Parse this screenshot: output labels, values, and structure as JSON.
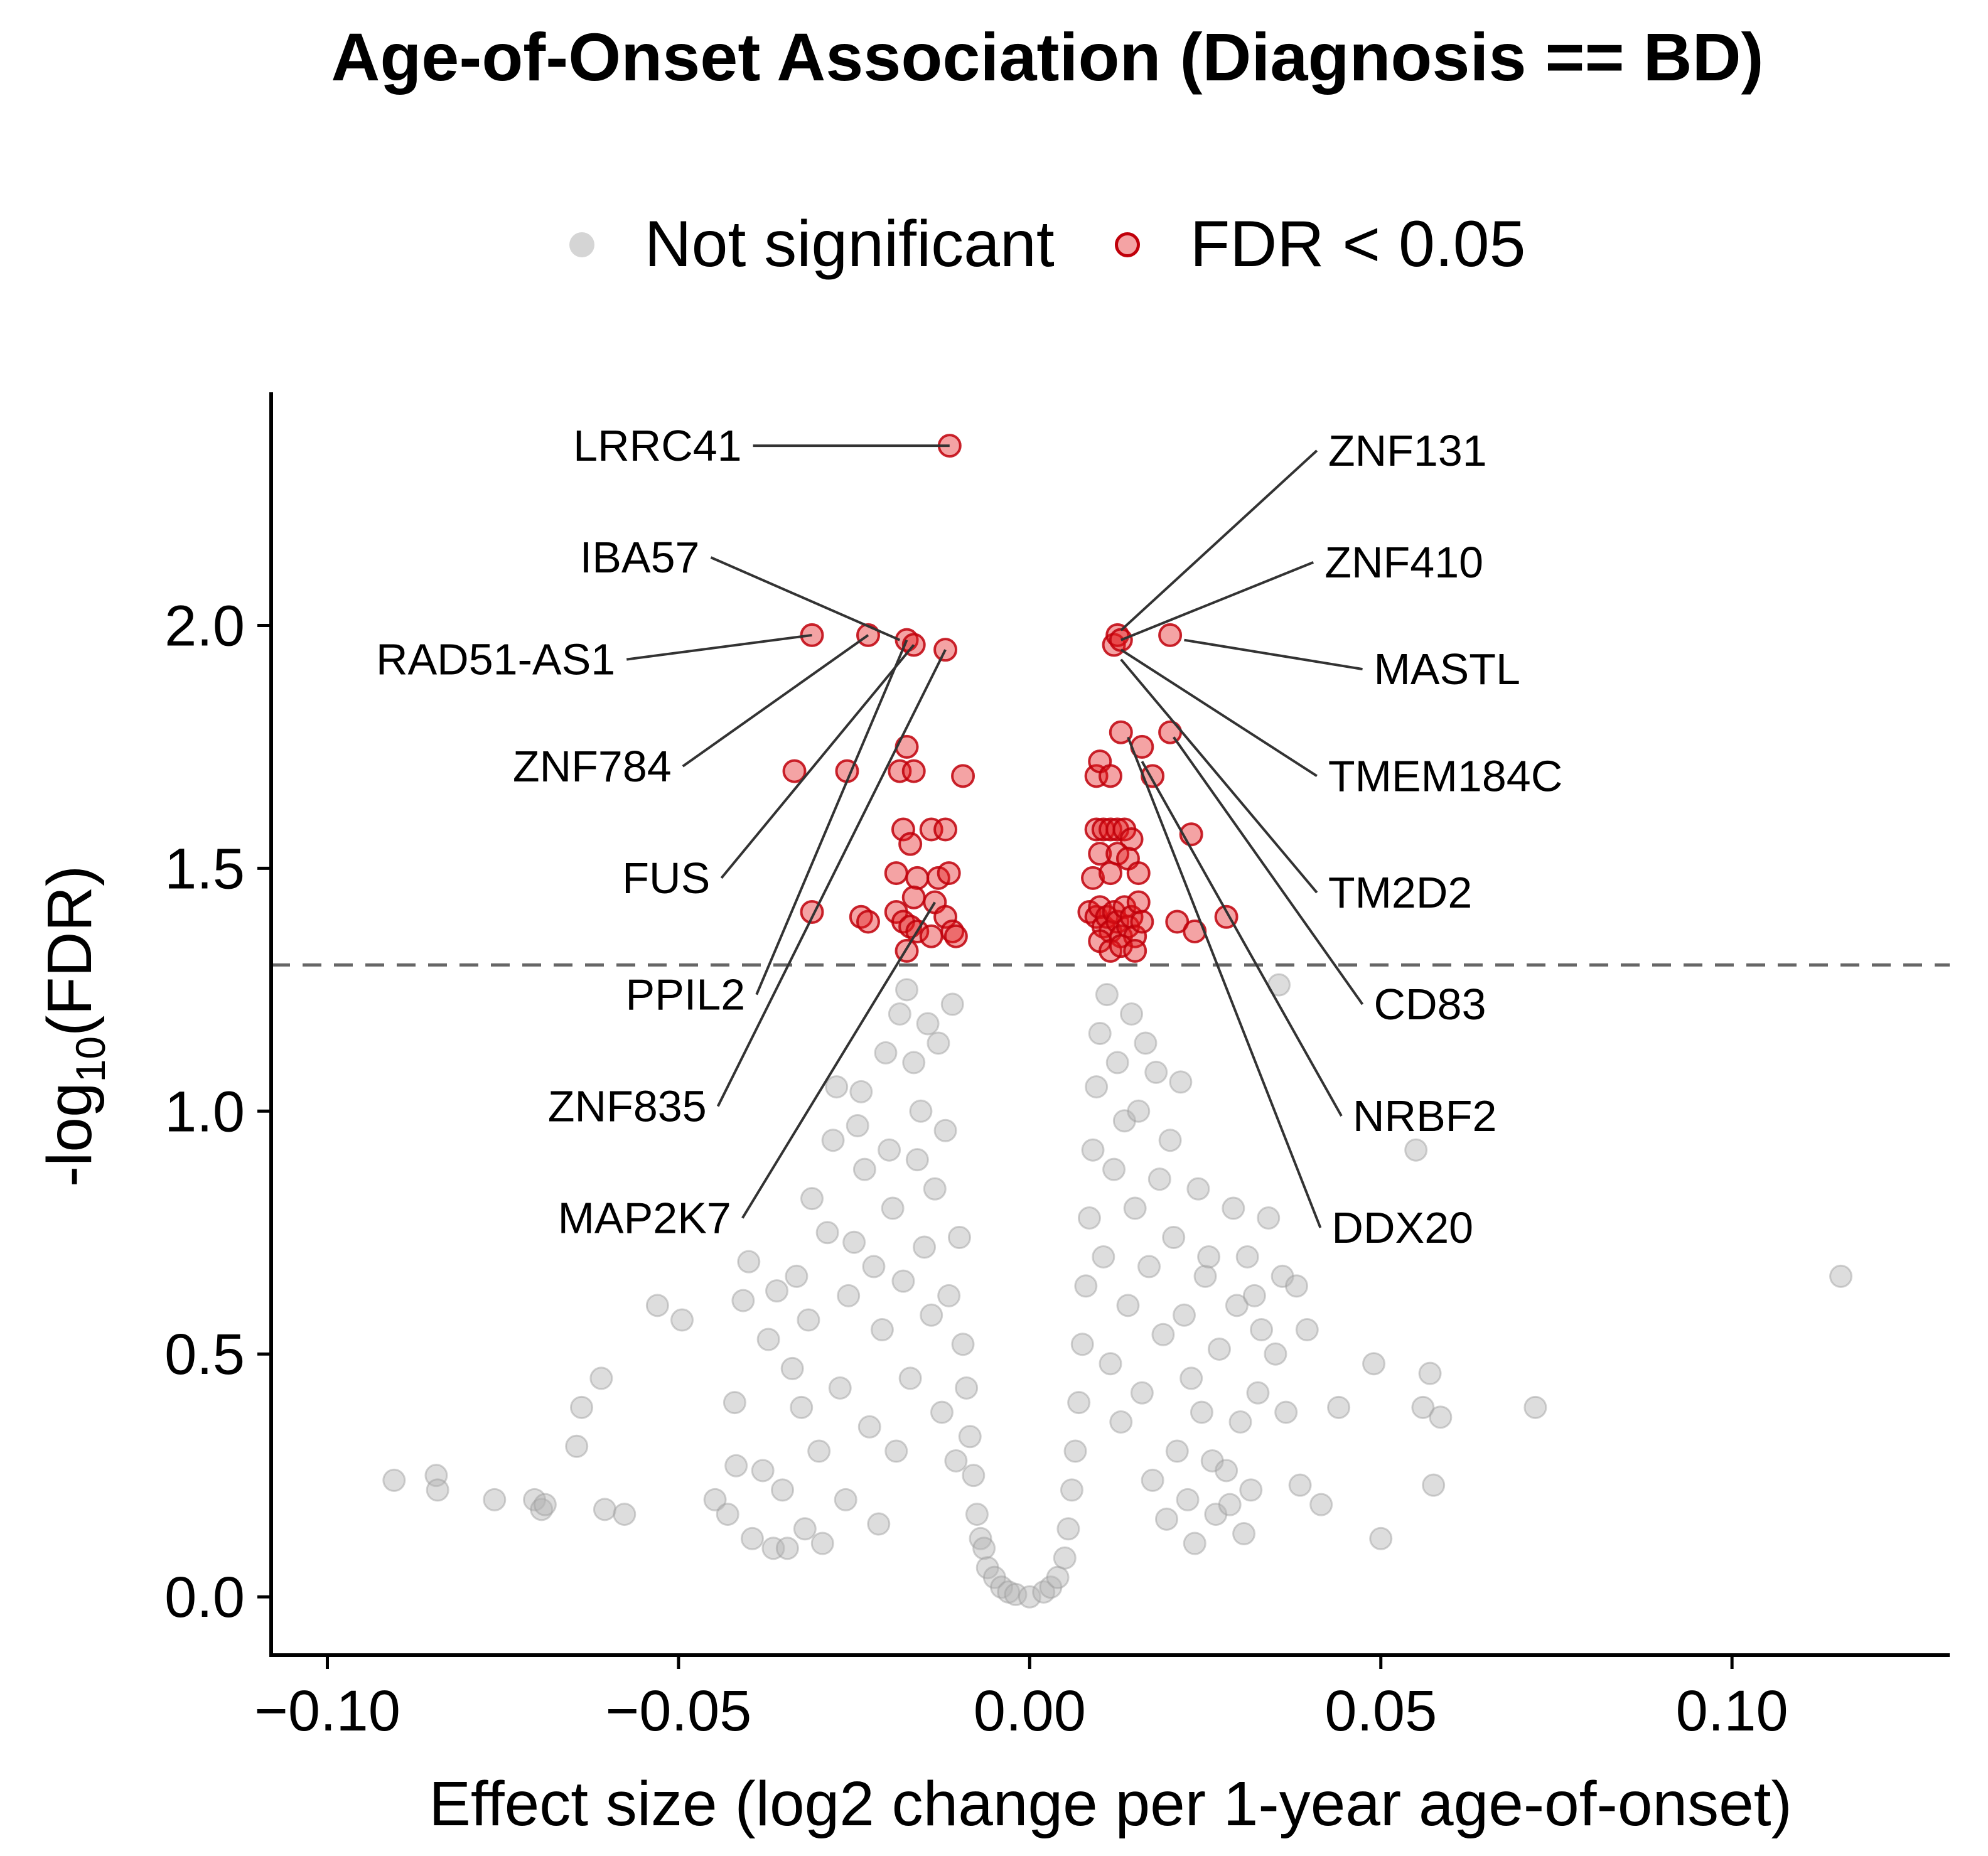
{
  "chart_data": {
    "type": "scatter",
    "title": "Age-of-Onset Association (Diagnosis == BD)",
    "xlabel": "Effect size (log2 change per 1-year age-of-onset)",
    "ylabel_main": "-log",
    "ylabel_sub": "10",
    "ylabel_tail": "(FDR)",
    "xlim": [
      -0.108,
      0.131
    ],
    "ylim": [
      -0.12,
      2.48
    ],
    "xticks": [
      -0.1,
      -0.05,
      0.0,
      0.05,
      0.1
    ],
    "xtick_labels": [
      "−0.10",
      "−0.05",
      "0.00",
      "0.05",
      "0.10"
    ],
    "yticks": [
      0.0,
      0.5,
      1.0,
      1.5,
      2.0
    ],
    "ytick_labels": [
      "0.0",
      "0.5",
      "1.0",
      "1.5",
      "2.0"
    ],
    "threshold_y": 1.30103,
    "legend_position": "top",
    "colors": {
      "not_significant": "#b3b3b3",
      "significant": "#e31a1c",
      "significant_edge": "#c0000a",
      "threshold": "#666666"
    },
    "series": [
      {
        "name": "Not significant",
        "points": [
          [
            -0.0905,
            0.24
          ],
          [
            -0.0845,
            0.25
          ],
          [
            -0.0843,
            0.22
          ],
          [
            -0.0762,
            0.2
          ],
          [
            -0.0705,
            0.2
          ],
          [
            -0.0695,
            0.18
          ],
          [
            -0.069,
            0.19
          ],
          [
            -0.0645,
            0.31
          ],
          [
            -0.0638,
            0.39
          ],
          [
            -0.061,
            0.45
          ],
          [
            -0.0605,
            0.18
          ],
          [
            -0.0577,
            0.17
          ],
          [
            -0.053,
            0.6
          ],
          [
            -0.0495,
            0.57
          ],
          [
            -0.0448,
            0.2
          ],
          [
            -0.043,
            0.17
          ],
          [
            -0.042,
            0.4
          ],
          [
            -0.0418,
            0.27
          ],
          [
            -0.0408,
            0.61
          ],
          [
            -0.04,
            0.69
          ],
          [
            -0.0395,
            0.12
          ],
          [
            -0.038,
            0.26
          ],
          [
            -0.0372,
            0.53
          ],
          [
            -0.0365,
            0.1
          ],
          [
            -0.036,
            0.63
          ],
          [
            -0.0352,
            0.22
          ],
          [
            -0.0345,
            0.1
          ],
          [
            -0.0338,
            0.47
          ],
          [
            -0.0332,
            0.66
          ],
          [
            -0.0325,
            0.39
          ],
          [
            -0.032,
            0.14
          ],
          [
            -0.0315,
            0.57
          ],
          [
            -0.031,
            0.82
          ],
          [
            -0.03,
            0.3
          ],
          [
            -0.0295,
            0.11
          ],
          [
            -0.0288,
            0.75
          ],
          [
            -0.028,
            0.94
          ],
          [
            -0.0275,
            1.05
          ],
          [
            -0.027,
            0.43
          ],
          [
            -0.0262,
            0.2
          ],
          [
            -0.0258,
            0.62
          ],
          [
            -0.025,
            0.73
          ],
          [
            -0.0245,
            0.97
          ],
          [
            -0.024,
            1.04
          ],
          [
            -0.0235,
            0.88
          ],
          [
            -0.0228,
            0.35
          ],
          [
            -0.0222,
            0.68
          ],
          [
            -0.0215,
            0.15
          ],
          [
            -0.021,
            0.55
          ],
          [
            -0.0205,
            1.12
          ],
          [
            -0.02,
            0.92
          ],
          [
            -0.0195,
            0.8
          ],
          [
            -0.019,
            0.3
          ],
          [
            -0.0185,
            1.2
          ],
          [
            -0.018,
            0.65
          ],
          [
            -0.0175,
            1.25
          ],
          [
            -0.017,
            0.45
          ],
          [
            -0.0165,
            1.1
          ],
          [
            -0.016,
            0.9
          ],
          [
            -0.0155,
            1.0
          ],
          [
            -0.015,
            0.72
          ],
          [
            -0.0145,
            1.18
          ],
          [
            -0.014,
            0.58
          ],
          [
            -0.0135,
            0.84
          ],
          [
            -0.013,
            1.14
          ],
          [
            -0.0125,
            0.38
          ],
          [
            -0.012,
            0.96
          ],
          [
            -0.0115,
            0.62
          ],
          [
            -0.011,
            1.22
          ],
          [
            -0.0105,
            0.28
          ],
          [
            -0.01,
            0.74
          ],
          [
            -0.0095,
            0.52
          ],
          [
            -0.009,
            0.43
          ],
          [
            -0.0085,
            0.33
          ],
          [
            -0.008,
            0.25
          ],
          [
            -0.0075,
            0.17
          ],
          [
            -0.007,
            0.12
          ],
          [
            -0.0065,
            0.1
          ],
          [
            -0.006,
            0.06
          ],
          [
            -0.005,
            0.04
          ],
          [
            -0.004,
            0.02
          ],
          [
            -0.003,
            0.01
          ],
          [
            -0.002,
            0.005
          ],
          [
            0.0,
            0.0
          ],
          [
            0.002,
            0.01
          ],
          [
            0.003,
            0.02
          ],
          [
            0.004,
            0.04
          ],
          [
            0.005,
            0.08
          ],
          [
            0.0055,
            0.14
          ],
          [
            0.006,
            0.22
          ],
          [
            0.0065,
            0.3
          ],
          [
            0.007,
            0.4
          ],
          [
            0.0075,
            0.52
          ],
          [
            0.008,
            0.64
          ],
          [
            0.0085,
            0.78
          ],
          [
            0.009,
            0.92
          ],
          [
            0.0095,
            1.05
          ],
          [
            0.01,
            1.16
          ],
          [
            0.0105,
            0.7
          ],
          [
            0.011,
            1.24
          ],
          [
            0.0115,
            0.48
          ],
          [
            0.012,
            0.88
          ],
          [
            0.0125,
            1.1
          ],
          [
            0.013,
            0.36
          ],
          [
            0.0135,
            0.98
          ],
          [
            0.014,
            0.6
          ],
          [
            0.0145,
            1.2
          ],
          [
            0.015,
            0.8
          ],
          [
            0.0155,
            1.0
          ],
          [
            0.016,
            0.42
          ],
          [
            0.0165,
            1.14
          ],
          [
            0.017,
            0.68
          ],
          [
            0.0175,
            0.24
          ],
          [
            0.018,
            1.08
          ],
          [
            0.0185,
            0.86
          ],
          [
            0.019,
            0.54
          ],
          [
            0.0195,
            0.16
          ],
          [
            0.02,
            0.94
          ],
          [
            0.0205,
            0.74
          ],
          [
            0.021,
            0.3
          ],
          [
            0.0215,
            1.06
          ],
          [
            0.022,
            0.58
          ],
          [
            0.0225,
            0.2
          ],
          [
            0.023,
            0.45
          ],
          [
            0.0235,
            0.11
          ],
          [
            0.024,
            0.84
          ],
          [
            0.0245,
            0.38
          ],
          [
            0.025,
            0.66
          ],
          [
            0.0255,
            0.7
          ],
          [
            0.026,
            0.28
          ],
          [
            0.0265,
            0.17
          ],
          [
            0.027,
            0.51
          ],
          [
            0.028,
            0.26
          ],
          [
            0.0285,
            0.19
          ],
          [
            0.029,
            0.8
          ],
          [
            0.0295,
            0.6
          ],
          [
            0.03,
            0.36
          ],
          [
            0.0305,
            0.13
          ],
          [
            0.031,
            0.7
          ],
          [
            0.0315,
            0.22
          ],
          [
            0.032,
            0.62
          ],
          [
            0.0325,
            0.42
          ],
          [
            0.033,
            0.55
          ],
          [
            0.034,
            0.78
          ],
          [
            0.035,
            0.5
          ],
          [
            0.0355,
            1.26
          ],
          [
            0.036,
            0.66
          ],
          [
            0.0365,
            0.38
          ],
          [
            0.038,
            0.64
          ],
          [
            0.0385,
            0.23
          ],
          [
            0.0395,
            0.55
          ],
          [
            0.0415,
            0.19
          ],
          [
            0.044,
            0.39
          ],
          [
            0.049,
            0.48
          ],
          [
            0.05,
            0.12
          ],
          [
            0.055,
            0.92
          ],
          [
            0.056,
            0.39
          ],
          [
            0.057,
            0.46
          ],
          [
            0.0575,
            0.23
          ],
          [
            0.0585,
            0.37
          ],
          [
            0.072,
            0.39
          ],
          [
            0.1155,
            0.66
          ]
        ]
      },
      {
        "name": "FDR < 0.05",
        "points": [
          [
            -0.0114,
            2.37
          ],
          [
            -0.031,
            1.98
          ],
          [
            -0.023,
            1.98
          ],
          [
            -0.0175,
            1.97
          ],
          [
            -0.0165,
            1.96
          ],
          [
            -0.012,
            1.95
          ],
          [
            0.012,
            1.96
          ],
          [
            0.0125,
            1.98
          ],
          [
            0.013,
            1.97
          ],
          [
            0.02,
            1.98
          ],
          [
            -0.0335,
            1.7
          ],
          [
            -0.026,
            1.7
          ],
          [
            -0.0185,
            1.7
          ],
          [
            -0.0175,
            1.75
          ],
          [
            -0.0165,
            1.7
          ],
          [
            -0.0095,
            1.69
          ],
          [
            -0.018,
            1.58
          ],
          [
            -0.014,
            1.58
          ],
          [
            -0.012,
            1.58
          ],
          [
            -0.017,
            1.55
          ],
          [
            -0.019,
            1.49
          ],
          [
            -0.016,
            1.48
          ],
          [
            -0.013,
            1.48
          ],
          [
            -0.0115,
            1.49
          ],
          [
            -0.0165,
            1.44
          ],
          [
            -0.0135,
            1.43
          ],
          [
            -0.031,
            1.41
          ],
          [
            -0.024,
            1.4
          ],
          [
            -0.023,
            1.39
          ],
          [
            -0.019,
            1.41
          ],
          [
            -0.018,
            1.39
          ],
          [
            -0.017,
            1.38
          ],
          [
            -0.016,
            1.37
          ],
          [
            -0.014,
            1.36
          ],
          [
            -0.012,
            1.4
          ],
          [
            -0.011,
            1.37
          ],
          [
            -0.0105,
            1.36
          ],
          [
            -0.0175,
            1.33
          ],
          [
            0.0095,
            1.69
          ],
          [
            0.01,
            1.72
          ],
          [
            0.0115,
            1.69
          ],
          [
            0.013,
            1.78
          ],
          [
            0.016,
            1.75
          ],
          [
            0.0175,
            1.69
          ],
          [
            0.02,
            1.78
          ],
          [
            0.0095,
            1.58
          ],
          [
            0.0105,
            1.58
          ],
          [
            0.0115,
            1.58
          ],
          [
            0.0125,
            1.58
          ],
          [
            0.0135,
            1.58
          ],
          [
            0.0145,
            1.56
          ],
          [
            0.01,
            1.53
          ],
          [
            0.0125,
            1.53
          ],
          [
            0.014,
            1.52
          ],
          [
            0.009,
            1.48
          ],
          [
            0.0115,
            1.49
          ],
          [
            0.0155,
            1.49
          ],
          [
            0.023,
            1.57
          ],
          [
            0.0085,
            1.41
          ],
          [
            0.0095,
            1.4
          ],
          [
            0.01,
            1.42
          ],
          [
            0.0105,
            1.38
          ],
          [
            0.011,
            1.4
          ],
          [
            0.0115,
            1.37
          ],
          [
            0.012,
            1.41
          ],
          [
            0.0125,
            1.39
          ],
          [
            0.013,
            1.36
          ],
          [
            0.0135,
            1.42
          ],
          [
            0.014,
            1.38
          ],
          [
            0.0145,
            1.4
          ],
          [
            0.015,
            1.36
          ],
          [
            0.0155,
            1.43
          ],
          [
            0.016,
            1.39
          ],
          [
            0.01,
            1.35
          ],
          [
            0.0115,
            1.33
          ],
          [
            0.013,
            1.34
          ],
          [
            0.015,
            1.33
          ],
          [
            0.021,
            1.39
          ],
          [
            0.0235,
            1.37
          ],
          [
            0.028,
            1.4
          ]
        ]
      }
    ],
    "annotations": [
      {
        "label": "LRRC41",
        "px": -0.0114,
        "py": 2.37,
        "tx": -0.041,
        "ty": 2.37,
        "anchor": "end"
      },
      {
        "label": "IBA57",
        "px": -0.0185,
        "py": 1.97,
        "tx": -0.047,
        "ty": 2.14,
        "anchor": "end"
      },
      {
        "label": "RAD51-AS1",
        "px": -0.031,
        "py": 1.98,
        "tx": -0.059,
        "ty": 1.93,
        "anchor": "end"
      },
      {
        "label": "ZNF784",
        "px": -0.023,
        "py": 1.98,
        "tx": -0.051,
        "ty": 1.71,
        "anchor": "end"
      },
      {
        "label": "FUS",
        "px": -0.0165,
        "py": 1.96,
        "tx": -0.0455,
        "ty": 1.48,
        "anchor": "end"
      },
      {
        "label": "PPIL2",
        "px": -0.0175,
        "py": 1.97,
        "tx": -0.0405,
        "ty": 1.24,
        "anchor": "end"
      },
      {
        "label": "ZNF835",
        "px": -0.012,
        "py": 1.95,
        "tx": -0.046,
        "ty": 1.01,
        "anchor": "end"
      },
      {
        "label": "MAP2K7",
        "px": -0.0135,
        "py": 1.43,
        "tx": -0.0425,
        "ty": 0.78,
        "anchor": "end"
      },
      {
        "label": "ZNF131",
        "px": 0.013,
        "py": 1.99,
        "tx": 0.0425,
        "ty": 2.36,
        "anchor": "start"
      },
      {
        "label": "ZNF410",
        "px": 0.013,
        "py": 1.97,
        "tx": 0.042,
        "ty": 2.13,
        "anchor": "start"
      },
      {
        "label": "MASTL",
        "px": 0.022,
        "py": 1.97,
        "tx": 0.049,
        "ty": 1.91,
        "anchor": "start"
      },
      {
        "label": "TMEM184C",
        "px": 0.013,
        "py": 1.95,
        "tx": 0.0425,
        "ty": 1.69,
        "anchor": "start"
      },
      {
        "label": "TM2D2",
        "px": 0.013,
        "py": 1.93,
        "tx": 0.0425,
        "ty": 1.45,
        "anchor": "start"
      },
      {
        "label": "CD83",
        "px": 0.0205,
        "py": 1.77,
        "tx": 0.049,
        "ty": 1.22,
        "anchor": "start"
      },
      {
        "label": "NRBF2",
        "px": 0.016,
        "py": 1.72,
        "tx": 0.046,
        "ty": 0.99,
        "anchor": "start"
      },
      {
        "label": "DDX20",
        "px": 0.014,
        "py": 1.77,
        "tx": 0.043,
        "ty": 0.76,
        "anchor": "start"
      }
    ]
  }
}
